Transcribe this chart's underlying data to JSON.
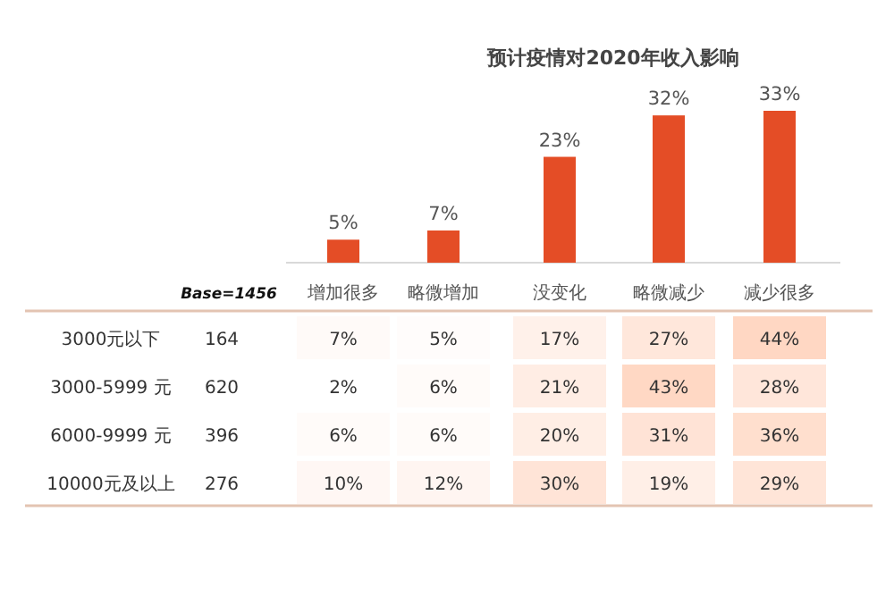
{
  "chart_data": [
    {
      "type": "bar",
      "title": "预计疫情对2020年收入影响",
      "categories": [
        "增加很多",
        "略微增加",
        "没变化",
        "略微减少",
        "减少很多"
      ],
      "values": [
        5,
        7,
        23,
        32,
        33
      ],
      "value_labels": [
        "5%",
        "7%",
        "23%",
        "32%",
        "33%"
      ],
      "color": "#e44d26"
    },
    {
      "type": "heatmap",
      "categories": [
        null,
        null,
        null,
        null,
        null
      ],
      "y_categories": [
        "3000元以下",
        "3000-5999 元",
        "6000-9999 元",
        "10000元及以上"
      ],
      "y2_categories": [
        "164",
        "620",
        "396",
        "276"
      ],
      "cells": [
        [
          7,
          5,
          17,
          27,
          44
        ],
        [
          2,
          6,
          21,
          43,
          28
        ],
        [
          6,
          6,
          20,
          31,
          36
        ],
        [
          10,
          12,
          30,
          19,
          29
        ]
      ],
      "cell_labels": [
        [
          "7%",
          "5%",
          "17%",
          "27%",
          "44%"
        ],
        [
          "2%",
          "6%",
          "21%",
          "43%",
          "28%"
        ],
        [
          "6%",
          "6%",
          "20%",
          "31%",
          "36%"
        ],
        [
          "10%",
          "12%",
          "30%",
          "19%",
          "29%"
        ]
      ],
      "annotations": [
        "Base=1456"
      ]
    }
  ]
}
